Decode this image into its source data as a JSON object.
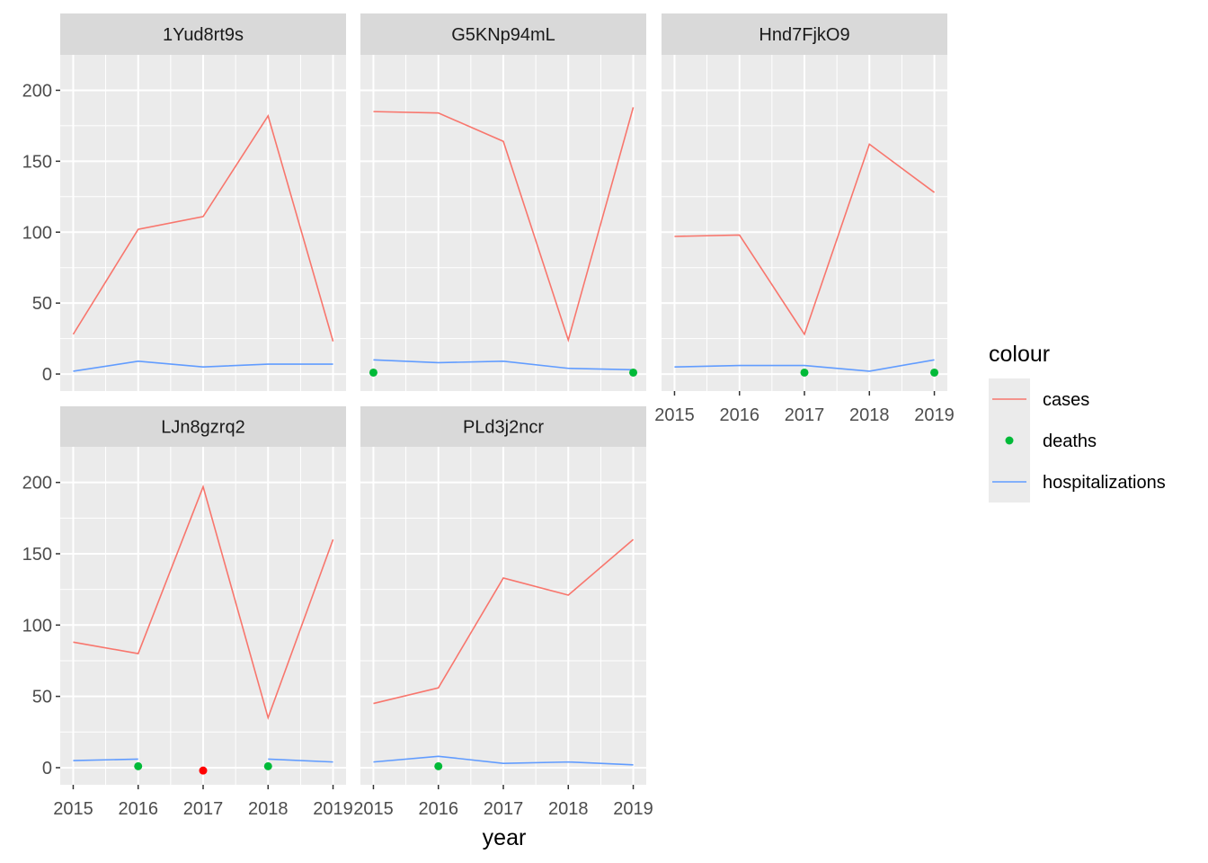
{
  "chart_data": {
    "type": "line",
    "layout": "facet-wrap",
    "xlabel": "year",
    "ylabel": "",
    "x": [
      2015,
      2016,
      2017,
      2018,
      2019
    ],
    "x_ticks": [
      "2015",
      "2016",
      "2017",
      "2018",
      "2019"
    ],
    "ylim": [
      -12,
      225
    ],
    "y_ticks": [
      "0",
      "50",
      "100",
      "150",
      "200"
    ],
    "legend": {
      "title": "colour",
      "position": "right",
      "entries": [
        {
          "label": "cases",
          "kind": "line",
          "color": "#F8766D"
        },
        {
          "label": "deaths",
          "kind": "point",
          "color": "#00BA38"
        },
        {
          "label": "hospitalizations",
          "kind": "line",
          "color": "#619CFF"
        }
      ]
    },
    "colors": {
      "panel_bg": "#EBEBEB",
      "strip_bg": "#D9D9D9",
      "grid": "#FFFFFF",
      "extra_point": "#FF0000"
    },
    "facets": [
      {
        "name": "1Yud8rt9s",
        "cases": [
          28,
          102,
          111,
          182,
          23
        ],
        "hospitalizations": [
          2,
          9,
          5,
          7,
          7
        ],
        "deaths": []
      },
      {
        "name": "G5KNp94mL",
        "cases": [
          185,
          184,
          164,
          24,
          188
        ],
        "hospitalizations": [
          10,
          8,
          9,
          4,
          3
        ],
        "deaths": [
          {
            "x": 2015,
            "y": 1
          },
          {
            "x": 2019,
            "y": 1
          }
        ]
      },
      {
        "name": "Hnd7FjkO9",
        "cases": [
          97,
          98,
          28,
          162,
          128
        ],
        "hospitalizations": [
          5,
          6,
          6,
          2,
          10
        ],
        "deaths": [
          {
            "x": 2017,
            "y": 1
          },
          {
            "x": 2019,
            "y": 1
          }
        ]
      },
      {
        "name": "LJn8gzrq2",
        "cases": [
          88,
          80,
          197,
          35,
          160
        ],
        "hospitalizations": [
          5,
          6,
          null,
          6,
          4
        ],
        "deaths": [
          {
            "x": 2016,
            "y": 1
          },
          {
            "x": 2018,
            "y": 1
          }
        ],
        "extra_points": [
          {
            "x": 2017,
            "y": -2
          }
        ]
      },
      {
        "name": "PLd3j2ncr",
        "cases": [
          45,
          56,
          133,
          121,
          160
        ],
        "hospitalizations": [
          4,
          8,
          3,
          4,
          2
        ],
        "deaths": [
          {
            "x": 2016,
            "y": 1
          }
        ]
      }
    ]
  }
}
